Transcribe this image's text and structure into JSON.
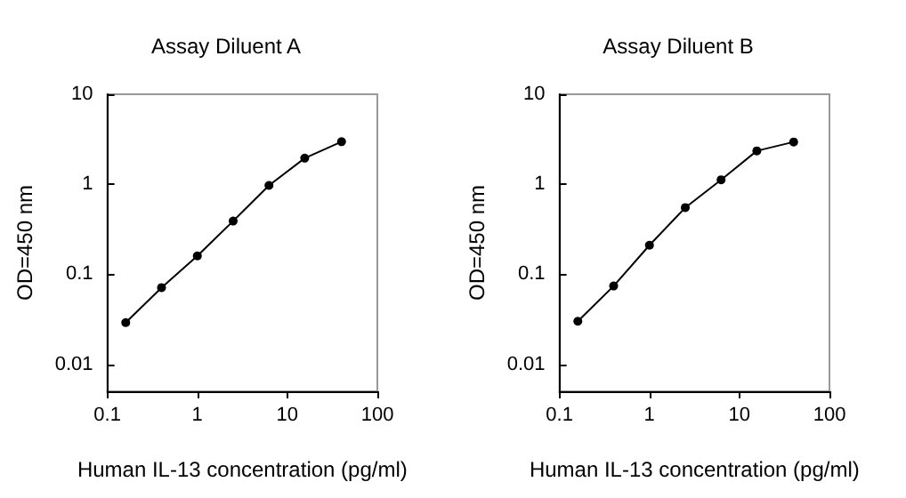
{
  "chart_data": [
    {
      "type": "line",
      "title": "Assay Diluent A",
      "xlabel": "Human IL-13 concentration (pg/ml)",
      "ylabel": "OD=450 nm",
      "log": "xy",
      "marker": "circle",
      "line_style": "solid",
      "xlim": [
        0.1,
        100
      ],
      "ylim": [
        0.005,
        10
      ],
      "xticks": [
        0.1,
        1,
        10,
        100
      ],
      "yticks": [
        0.01,
        0.1,
        1,
        10
      ],
      "x": [
        0.16,
        0.4,
        1,
        2.5,
        6.25,
        15.6,
        40
      ],
      "series": [
        {
          "color": "#000000",
          "values": [
            0.029,
            0.071,
            0.16,
            0.39,
            0.97,
            1.95,
            2.97
          ]
        }
      ]
    },
    {
      "type": "line",
      "title": "Assay Diluent B",
      "xlabel": "Human IL-13 concentration (pg/ml)",
      "ylabel": "OD=450 nm",
      "log": "xy",
      "marker": "circle",
      "line_style": "solid",
      "xlim": [
        0.1,
        100
      ],
      "ylim": [
        0.005,
        10
      ],
      "xticks": [
        0.1,
        1,
        10,
        100
      ],
      "yticks": [
        0.01,
        0.1,
        1,
        10
      ],
      "x": [
        0.16,
        0.4,
        1,
        2.5,
        6.25,
        15.6,
        40
      ],
      "series": [
        {
          "color": "#000000",
          "values": [
            0.03,
            0.074,
            0.21,
            0.55,
            1.12,
            2.35,
            2.95
          ]
        }
      ]
    }
  ]
}
